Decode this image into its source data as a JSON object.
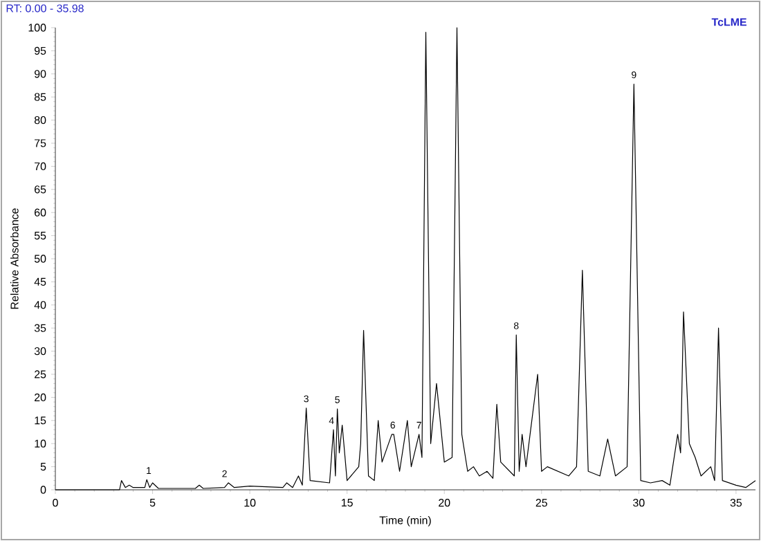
{
  "chart_data": {
    "type": "line",
    "xlabel": "Time (min)",
    "ylabel": "Relative Absorbance",
    "xlim": [
      0,
      36
    ],
    "ylim": [
      0,
      100
    ],
    "xticks": [
      0,
      5,
      10,
      15,
      20,
      25,
      30,
      35
    ],
    "yticks": [
      0,
      5,
      10,
      15,
      20,
      25,
      30,
      35,
      40,
      45,
      50,
      55,
      60,
      65,
      70,
      75,
      80,
      85,
      90,
      95,
      100
    ],
    "grid": false,
    "marker": "none",
    "line_style": "solid",
    "series": [
      {
        "color": "#000000",
        "x": [
          0,
          3.3,
          3.4,
          3.6,
          3.8,
          4.0,
          4.6,
          4.7,
          4.85,
          5.0,
          5.3,
          7.2,
          7.4,
          7.6,
          8.7,
          8.9,
          9.2,
          10.0,
          11.7,
          11.9,
          12.2,
          12.5,
          12.7,
          12.9,
          13.1,
          14.1,
          14.3,
          14.4,
          14.5,
          14.6,
          14.75,
          15.0,
          15.6,
          15.7,
          15.85,
          16.1,
          16.4,
          16.6,
          16.8,
          17.3,
          17.4,
          17.7,
          18.1,
          18.3,
          18.7,
          18.85,
          19.05,
          19.3,
          19.6,
          20.0,
          20.4,
          20.65,
          20.9,
          21.2,
          21.5,
          21.8,
          22.2,
          22.5,
          22.7,
          22.9,
          23.6,
          23.7,
          23.85,
          24.0,
          24.2,
          24.8,
          25.0,
          25.3,
          26.4,
          26.8,
          27.1,
          27.4,
          28.0,
          28.4,
          28.8,
          29.4,
          29.75,
          30.1,
          30.6,
          31.2,
          31.6,
          32.0,
          32.15,
          32.3,
          32.6,
          32.9,
          33.2,
          33.7,
          33.9,
          34.1,
          34.3,
          35.0,
          35.5,
          36.0
        ],
        "values": [
          0,
          0,
          2,
          0.5,
          1,
          0.5,
          0.5,
          2.2,
          0.5,
          1.5,
          0.3,
          0.3,
          1,
          0.3,
          0.5,
          1.5,
          0.5,
          0.8,
          0.5,
          1.5,
          0.5,
          3,
          1,
          17.7,
          2,
          1.5,
          13,
          3,
          17.5,
          8,
          14,
          2,
          5,
          10,
          34.5,
          3,
          2,
          15,
          6,
          12,
          12,
          4,
          15,
          5,
          12,
          7,
          99,
          10,
          23,
          6,
          7,
          100,
          12,
          4,
          5,
          3,
          4,
          2.5,
          18.5,
          6,
          3,
          33.5,
          4,
          12,
          5,
          25,
          4,
          5,
          3,
          5,
          47.5,
          4,
          3,
          11,
          3,
          5,
          87.8,
          2,
          1.5,
          2,
          1,
          12,
          8,
          38.5,
          10,
          7,
          3,
          5,
          2,
          35,
          2,
          1,
          0.5,
          2
        ]
      }
    ],
    "annotations": [
      "RT: 0.00 - 35.98",
      "TcLME",
      {
        "text": "1",
        "x": 4.8,
        "y": 2.2
      },
      {
        "text": "2",
        "x": 8.7,
        "y": 1.5
      },
      {
        "text": "3",
        "x": 12.9,
        "y": 17.7
      },
      {
        "text": "4",
        "x": 14.2,
        "y": 13
      },
      {
        "text": "5",
        "x": 14.5,
        "y": 17.5
      },
      {
        "text": "6",
        "x": 17.35,
        "y": 12
      },
      {
        "text": "7",
        "x": 18.7,
        "y": 12
      },
      {
        "text": "8",
        "x": 23.7,
        "y": 33.5
      },
      {
        "text": "9",
        "x": 29.75,
        "y": 87.8
      }
    ]
  }
}
